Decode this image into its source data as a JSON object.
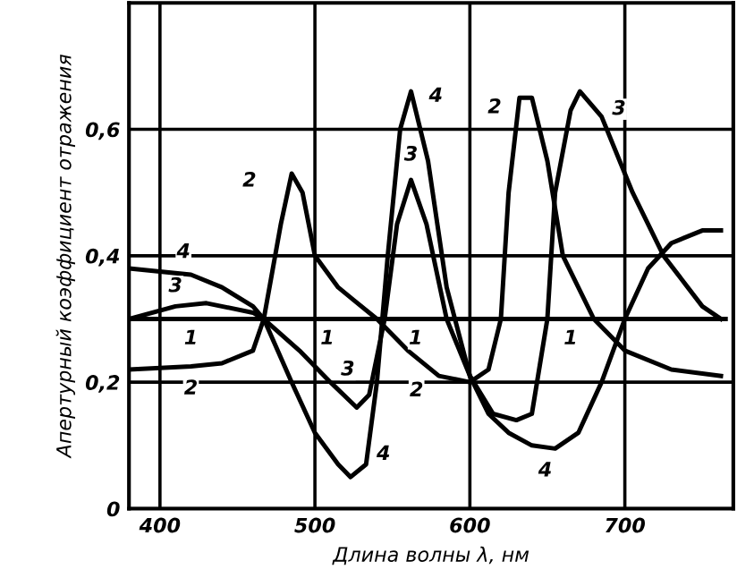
{
  "chart_data": {
    "type": "line",
    "xlabel": "Длина волны λ, нм",
    "ylabel": "Апертурный коэффициент отражения",
    "xlim": [
      380,
      770
    ],
    "ylim": [
      0,
      0.8
    ],
    "xticks": [
      400,
      500,
      600,
      700
    ],
    "yticks": [
      0,
      {
        "value": 0.2,
        "label": "0,2"
      },
      {
        "value": 0.4,
        "label": "0,4"
      },
      {
        "value": 0.6,
        "label": "0,6"
      }
    ],
    "grid": true,
    "line_style": "solid",
    "marker": "none",
    "series": [
      {
        "color": "#000000",
        "x": [
          380,
          420,
          467,
          508,
          565,
          665,
          765
        ],
        "values": [
          0.3,
          0.3,
          0.3,
          0.3,
          0.3,
          0.3,
          0.3
        ]
      },
      {
        "color": "#000000",
        "x": [
          380,
          420,
          440,
          460,
          467,
          478,
          485,
          492,
          500,
          515,
          525,
          540,
          560,
          580,
          600,
          612,
          620,
          625,
          632,
          640,
          650,
          660,
          680,
          700,
          730,
          762
        ],
        "values": [
          0.22,
          0.225,
          0.23,
          0.25,
          0.3,
          0.45,
          0.53,
          0.5,
          0.4,
          0.35,
          0.33,
          0.3,
          0.25,
          0.21,
          0.2,
          0.22,
          0.3,
          0.5,
          0.65,
          0.65,
          0.55,
          0.4,
          0.3,
          0.25,
          0.22,
          0.21
        ]
      },
      {
        "color": "#000000",
        "x": [
          380,
          410,
          430,
          460,
          467,
          490,
          510,
          527,
          535,
          545,
          553,
          562,
          572,
          585,
          600,
          615,
          630,
          640,
          650,
          655,
          665,
          671,
          685,
          705,
          725,
          750,
          762
        ],
        "values": [
          0.3,
          0.32,
          0.325,
          0.31,
          0.3,
          0.25,
          0.2,
          0.16,
          0.18,
          0.3,
          0.45,
          0.52,
          0.45,
          0.3,
          0.21,
          0.15,
          0.14,
          0.15,
          0.3,
          0.5,
          0.63,
          0.66,
          0.62,
          0.5,
          0.4,
          0.32,
          0.3
        ]
      },
      {
        "color": "#000000",
        "x": [
          380,
          420,
          440,
          460,
          467,
          485,
          500,
          515,
          523,
          533,
          540,
          547,
          555,
          562,
          573,
          585,
          600,
          612,
          625,
          640,
          655,
          670,
          685,
          700,
          715,
          730,
          750,
          762
        ],
        "values": [
          0.38,
          0.37,
          0.35,
          0.32,
          0.3,
          0.2,
          0.12,
          0.07,
          0.05,
          0.07,
          0.2,
          0.4,
          0.6,
          0.66,
          0.55,
          0.35,
          0.21,
          0.15,
          0.12,
          0.1,
          0.095,
          0.12,
          0.2,
          0.3,
          0.38,
          0.42,
          0.44,
          0.44
        ]
      }
    ],
    "annotations": [
      {
        "text": "4",
        "x": 420,
        "y": 0.37
      },
      {
        "text": "3",
        "x": 410,
        "y": 0.32
      },
      {
        "text": "1",
        "x": 420,
        "y": 0.3
      },
      {
        "text": "2",
        "x": 420,
        "y": 0.225
      },
      {
        "text": "2",
        "x": 485,
        "y": 0.53
      },
      {
        "text": "1",
        "x": 508,
        "y": 0.3
      },
      {
        "text": "3",
        "x": 510,
        "y": 0.2
      },
      {
        "text": "4",
        "x": 533,
        "y": 0.07
      },
      {
        "text": "4",
        "x": 562,
        "y": 0.66
      },
      {
        "text": "3",
        "x": 562,
        "y": 0.52
      },
      {
        "text": "1",
        "x": 565,
        "y": 0.3
      },
      {
        "text": "2",
        "x": 580,
        "y": 0.21
      },
      {
        "text": "2",
        "x": 632,
        "y": 0.65
      },
      {
        "text": "3",
        "x": 685,
        "y": 0.62
      },
      {
        "text": "1",
        "x": 665,
        "y": 0.3
      },
      {
        "text": "4",
        "x": 655,
        "y": 0.095
      }
    ]
  }
}
